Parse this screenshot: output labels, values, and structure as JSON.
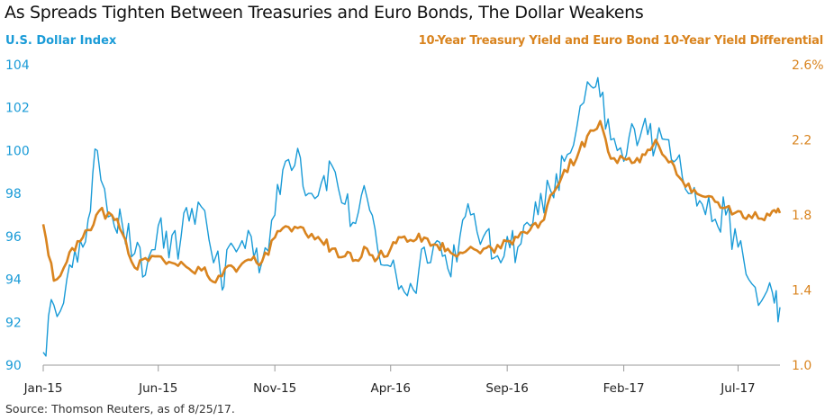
{
  "title": "As Spreads Tighten Between Treasuries and Euro Bonds, The Dollar Weakens",
  "source": "Source: Thomson Reuters, as of 8/25/17.",
  "colors": {
    "dollar": "#1a9bd7",
    "spread": "#d9841f",
    "axis": "#999999",
    "text": "#222222"
  },
  "chart_data": {
    "type": "line",
    "title": "As Spreads Tighten Between Treasuries and Euro Bonds, The Dollar Weakens",
    "x_ticks": [
      "Jan-15",
      "Jun-15",
      "Nov-15",
      "Apr-16",
      "Sep-16",
      "Feb-17",
      "Jul-17"
    ],
    "x_range": [
      "2015-01",
      "2017-08"
    ],
    "left_axis": {
      "label": "U.S. Dollar Index",
      "ylim": [
        90,
        104
      ],
      "ticks": [
        "90",
        "92",
        "94",
        "96",
        "98",
        "100",
        "102",
        "104"
      ]
    },
    "right_axis": {
      "label": "10-Year Treasury Yield and Euro Bond 10-Year Yield Differential",
      "ylim": [
        1.0,
        2.6
      ],
      "ticks": [
        "1.0",
        "1.4",
        "1.8",
        "2.2",
        "2.6%"
      ]
    },
    "grid": false,
    "series": [
      {
        "name": "U.S. Dollar Index",
        "axis": "left",
        "x": [
          "2015-01-01",
          "2015-01-15",
          "2015-02-01",
          "2015-02-15",
          "2015-03-01",
          "2015-03-13",
          "2015-04-01",
          "2015-04-15",
          "2015-05-01",
          "2015-05-15",
          "2015-06-01",
          "2015-06-15",
          "2015-07-01",
          "2015-07-15",
          "2015-08-01",
          "2015-08-24",
          "2015-09-01",
          "2015-09-15",
          "2015-10-01",
          "2015-10-15",
          "2015-11-01",
          "2015-11-15",
          "2015-12-01",
          "2015-12-15",
          "2016-01-01",
          "2016-01-15",
          "2016-02-01",
          "2016-02-15",
          "2016-03-01",
          "2016-03-15",
          "2016-04-01",
          "2016-04-15",
          "2016-05-01",
          "2016-05-15",
          "2016-06-01",
          "2016-06-15",
          "2016-07-01",
          "2016-07-15",
          "2016-08-01",
          "2016-08-15",
          "2016-09-01",
          "2016-09-15",
          "2016-10-01",
          "2016-10-15",
          "2016-11-01",
          "2016-11-15",
          "2016-12-01",
          "2016-12-20",
          "2017-01-01",
          "2017-01-15",
          "2017-02-01",
          "2017-02-15",
          "2017-03-01",
          "2017-03-15",
          "2017-04-01",
          "2017-04-15",
          "2017-05-01",
          "2017-05-15",
          "2017-06-01",
          "2017-06-15",
          "2017-07-01",
          "2017-07-15",
          "2017-08-01",
          "2017-08-15",
          "2017-08-25"
        ],
        "values": [
          90.6,
          92.8,
          94.0,
          94.8,
          96.8,
          100.0,
          97.0,
          96.5,
          95.2,
          94.2,
          96.5,
          95.0,
          96.0,
          97.3,
          97.2,
          93.5,
          95.5,
          95.5,
          96.0,
          94.8,
          97.0,
          99.5,
          100.1,
          98.0,
          98.5,
          99.3,
          97.5,
          96.6,
          97.8,
          95.4,
          94.6,
          93.7,
          93.5,
          95.5,
          95.8,
          94.5,
          96.0,
          97.0,
          96.0,
          95.0,
          96.0,
          95.5,
          96.5,
          98.0,
          97.8,
          99.5,
          101.0,
          103.0,
          102.5,
          100.5,
          99.5,
          101.0,
          101.5,
          100.2,
          100.5,
          99.8,
          98.0,
          97.5,
          96.8,
          97.0,
          95.5,
          94.0,
          93.0,
          93.4,
          92.7
        ]
      },
      {
        "name": "10-Year Treasury Yield and Euro Bond 10-Year Yield Differential",
        "axis": "right",
        "x": [
          "2015-01-01",
          "2015-01-15",
          "2015-02-01",
          "2015-02-15",
          "2015-03-01",
          "2015-03-15",
          "2015-04-01",
          "2015-04-15",
          "2015-05-01",
          "2015-05-15",
          "2015-06-01",
          "2015-06-15",
          "2015-07-01",
          "2015-07-15",
          "2015-08-01",
          "2015-08-15",
          "2015-09-01",
          "2015-09-15",
          "2015-10-01",
          "2015-10-15",
          "2015-11-01",
          "2015-11-15",
          "2015-12-01",
          "2015-12-15",
          "2016-01-01",
          "2016-01-15",
          "2016-02-01",
          "2016-02-15",
          "2016-03-01",
          "2016-03-15",
          "2016-04-01",
          "2016-04-15",
          "2016-05-01",
          "2016-05-15",
          "2016-06-01",
          "2016-06-15",
          "2016-07-01",
          "2016-07-15",
          "2016-08-01",
          "2016-08-15",
          "2016-09-01",
          "2016-09-15",
          "2016-10-01",
          "2016-10-15",
          "2016-11-01",
          "2016-11-15",
          "2016-12-01",
          "2016-12-15",
          "2017-01-01",
          "2017-01-15",
          "2017-02-01",
          "2017-02-15",
          "2017-03-01",
          "2017-03-15",
          "2017-04-01",
          "2017-04-15",
          "2017-05-01",
          "2017-05-15",
          "2017-06-01",
          "2017-06-15",
          "2017-07-01",
          "2017-07-15",
          "2017-08-01",
          "2017-08-15",
          "2017-08-25"
        ],
        "values": [
          1.75,
          1.45,
          1.55,
          1.66,
          1.72,
          1.82,
          1.8,
          1.7,
          1.52,
          1.57,
          1.58,
          1.55,
          1.55,
          1.5,
          1.52,
          1.44,
          1.53,
          1.52,
          1.56,
          1.55,
          1.68,
          1.74,
          1.73,
          1.68,
          1.66,
          1.62,
          1.58,
          1.56,
          1.62,
          1.57,
          1.62,
          1.68,
          1.66,
          1.68,
          1.64,
          1.62,
          1.6,
          1.63,
          1.62,
          1.6,
          1.66,
          1.68,
          1.72,
          1.76,
          1.92,
          2.04,
          2.1,
          2.22,
          2.3,
          2.1,
          2.1,
          2.08,
          2.12,
          2.2,
          2.08,
          2.0,
          1.92,
          1.9,
          1.87,
          1.84,
          1.82,
          1.8,
          1.78,
          1.82,
          1.81
        ]
      }
    ]
  }
}
